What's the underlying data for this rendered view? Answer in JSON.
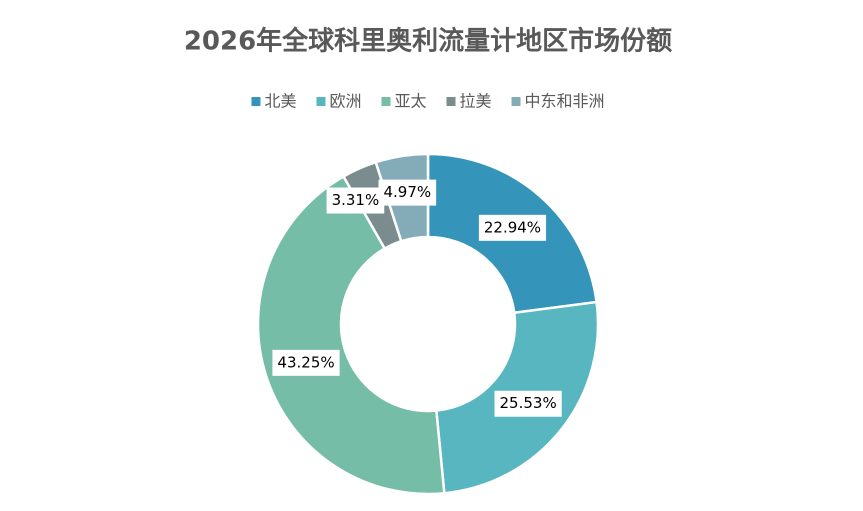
{
  "chart_data": {
    "type": "donut",
    "title": "2026年全球科里奥利流量计地区市场份额",
    "categories": [
      "北美",
      "欧洲",
      "亚太",
      "拉美",
      "中东和非洲"
    ],
    "values": [
      22.94,
      25.53,
      43.25,
      3.31,
      4.97
    ],
    "value_labels": [
      "22.94%",
      "25.53%",
      "43.25%",
      "3.31%",
      "4.97%"
    ],
    "colors": [
      "#3494ba",
      "#58b6c0",
      "#75bda7",
      "#7a8c8e",
      "#84acb8"
    ],
    "legend": "top"
  }
}
